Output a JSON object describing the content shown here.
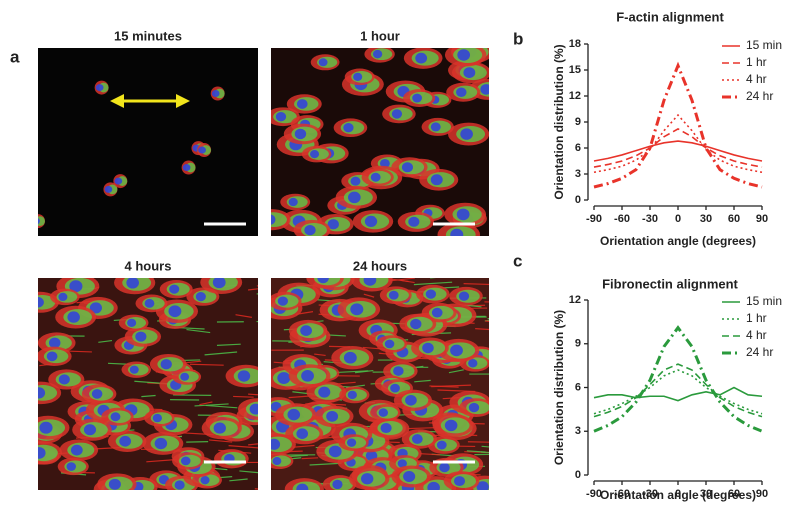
{
  "figure": {
    "panel_labels": [
      "a",
      "b",
      "c"
    ],
    "images": [
      {
        "title": "15 minutes"
      },
      {
        "title": "1 hour"
      },
      {
        "title": "4 hours"
      },
      {
        "title": "24 hours"
      }
    ]
  },
  "chart_data": [
    {
      "type": "line",
      "title": "F-actin alignment",
      "x_label": "Orientation angle (degrees)",
      "y_label": "Orientation distribution (%)",
      "x": [
        -90,
        -75,
        -60,
        -45,
        -30,
        -15,
        0,
        15,
        30,
        45,
        60,
        75,
        90
      ],
      "xlim": [
        -90,
        90
      ],
      "xticks": [
        -90,
        -60,
        -30,
        0,
        30,
        60,
        90
      ],
      "ylim": [
        0,
        18
      ],
      "yticks": [
        0,
        3,
        6,
        9,
        12,
        15,
        18
      ],
      "legend": "upper right",
      "series": [
        {
          "name": "15 min",
          "color": "#e8332a",
          "dash": "solid",
          "line_width": 1.6,
          "values": [
            4.5,
            4.8,
            5.2,
            5.7,
            6.2,
            6.6,
            6.8,
            6.6,
            6.2,
            5.7,
            5.2,
            4.8,
            4.5
          ]
        },
        {
          "name": "1 hr",
          "color": "#e8332a",
          "dash": "dashed",
          "line_width": 1.6,
          "values": [
            3.8,
            4.1,
            4.5,
            5.1,
            6.0,
            7.3,
            8.2,
            7.3,
            6.0,
            5.1,
            4.5,
            4.1,
            3.8
          ]
        },
        {
          "name": "4 hr",
          "color": "#e8332a",
          "dash": "dotted",
          "line_width": 1.6,
          "values": [
            3.2,
            3.5,
            3.9,
            4.6,
            5.8,
            8.0,
            9.8,
            8.0,
            5.8,
            4.6,
            3.9,
            3.5,
            3.2
          ]
        },
        {
          "name": "24 hr",
          "color": "#e8332a",
          "dash": "dashdot",
          "line_width": 3,
          "values": [
            1.5,
            1.9,
            2.5,
            3.5,
            6.0,
            11.5,
            15.5,
            11.5,
            6.0,
            3.5,
            2.5,
            1.9,
            1.5
          ]
        }
      ]
    },
    {
      "type": "line",
      "title": "Fibronectin alignment",
      "x_label": "Orientation angle (degrees)",
      "y_label": "Orientation distribution (%)",
      "x": [
        -90,
        -75,
        -60,
        -45,
        -30,
        -15,
        0,
        15,
        30,
        45,
        60,
        75,
        90
      ],
      "xlim": [
        -90,
        90
      ],
      "xticks": [
        -90,
        -60,
        -30,
        0,
        30,
        60,
        90
      ],
      "ylim": [
        0,
        12
      ],
      "yticks": [
        0,
        3,
        6,
        9,
        12
      ],
      "legend": "upper right",
      "series": [
        {
          "name": "15 min",
          "color": "#2a9a3c",
          "dash": "solid",
          "line_width": 1.6,
          "values": [
            5.3,
            5.5,
            5.5,
            5.3,
            5.4,
            5.4,
            5.1,
            5.5,
            5.7,
            5.5,
            6.0,
            5.5,
            5.4
          ]
        },
        {
          "name": "1 hr",
          "color": "#2a9a3c",
          "dash": "dotted",
          "line_width": 1.6,
          "values": [
            4.2,
            4.5,
            4.9,
            5.4,
            6.0,
            6.8,
            7.2,
            6.8,
            6.0,
            5.4,
            4.9,
            4.5,
            4.2
          ]
        },
        {
          "name": "4 hr",
          "color": "#2a9a3c",
          "dash": "dashed",
          "line_width": 1.6,
          "values": [
            4.0,
            4.3,
            4.7,
            5.3,
            6.2,
            7.2,
            7.6,
            7.2,
            6.2,
            5.3,
            4.7,
            4.3,
            4.0
          ]
        },
        {
          "name": "24 hr",
          "color": "#2a9a3c",
          "dash": "dashdot",
          "line_width": 3,
          "values": [
            3.0,
            3.4,
            4.0,
            5.0,
            6.5,
            8.8,
            10.1,
            8.8,
            6.5,
            5.0,
            4.0,
            3.4,
            3.0
          ]
        }
      ]
    }
  ]
}
